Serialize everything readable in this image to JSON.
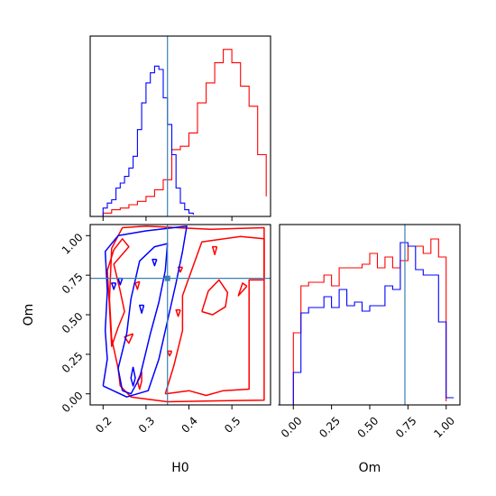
{
  "chart_data": [
    {
      "type": "histogram",
      "panel": "H0-marginal",
      "xlim": [
        0.17,
        0.59
      ],
      "x_ticks": [
        0.2,
        0.3,
        0.4,
        0.5
      ],
      "xlabel": "",
      "ylabel": "",
      "truth_x": 0.35,
      "series": [
        {
          "color": "#ff0000",
          "bin_edges": [
            0.2,
            0.22,
            0.24,
            0.26,
            0.28,
            0.3,
            0.32,
            0.34,
            0.36,
            0.38,
            0.4,
            0.42,
            0.44,
            0.46,
            0.48,
            0.5,
            0.52,
            0.54,
            0.56,
            0.58
          ],
          "heights": [
            0.02,
            0.04,
            0.05,
            0.07,
            0.09,
            0.12,
            0.16,
            0.22,
            0.4,
            0.42,
            0.5,
            0.68,
            0.8,
            0.92,
            1.0,
            0.92,
            0.78,
            0.66,
            0.37,
            0.12
          ]
        },
        {
          "color": "#0000ff",
          "bin_edges": [
            0.2,
            0.21,
            0.22,
            0.23,
            0.24,
            0.25,
            0.26,
            0.27,
            0.28,
            0.29,
            0.3,
            0.31,
            0.32,
            0.33,
            0.34,
            0.35,
            0.36,
            0.37,
            0.38,
            0.39,
            0.4,
            0.41
          ],
          "heights": [
            0.05,
            0.08,
            0.1,
            0.17,
            0.2,
            0.24,
            0.29,
            0.36,
            0.52,
            0.68,
            0.8,
            0.86,
            0.9,
            0.88,
            0.71,
            0.55,
            0.37,
            0.17,
            0.08,
            0.04,
            0.02,
            0.01
          ]
        }
      ]
    },
    {
      "type": "contour",
      "panel": "H0-Om-joint",
      "xlim": [
        0.17,
        0.59
      ],
      "ylim": [
        -0.07,
        1.07
      ],
      "x_ticks": [
        0.2,
        0.3,
        0.4,
        0.5
      ],
      "y_ticks": [
        0.0,
        0.25,
        0.5,
        0.75,
        1.0
      ],
      "x_tick_labels": [
        "0.2",
        "0.3",
        "0.4",
        "0.5"
      ],
      "y_tick_labels": [
        "0.00",
        "0.25",
        "0.50",
        "0.75",
        "1.00"
      ],
      "xlabel": "H0",
      "ylabel": "Om",
      "truth": [
        0.35,
        0.73
      ],
      "series": [
        {
          "color": "#ff0000",
          "contours": [
            [
              [
                0.265,
                -0.02
              ],
              [
                0.24,
                0.05
              ],
              [
                0.235,
                0.16
              ],
              [
                0.22,
                0.35
              ],
              [
                0.215,
                0.6
              ],
              [
                0.22,
                0.92
              ],
              [
                0.245,
                1.05
              ],
              [
                0.3,
                1.06
              ],
              [
                0.45,
                1.04
              ],
              [
                0.575,
                1.05
              ],
              [
                0.575,
                -0.04
              ],
              [
                0.45,
                -0.045
              ],
              [
                0.35,
                -0.05
              ],
              [
                0.265,
                -0.02
              ]
            ],
            [
              [
                0.345,
                0.0
              ],
              [
                0.365,
                0.18
              ],
              [
                0.385,
                0.4
              ],
              [
                0.385,
                0.62
              ],
              [
                0.43,
                0.96
              ],
              [
                0.52,
                0.995
              ],
              [
                0.575,
                0.98
              ],
              [
                0.575,
                0.72
              ],
              [
                0.54,
                0.72
              ],
              [
                0.54,
                0.03
              ],
              [
                0.48,
                0.02
              ],
              [
                0.44,
                -0.01
              ],
              [
                0.4,
                0.02
              ],
              [
                0.345,
                0.0
              ]
            ],
            [
              [
                0.43,
                0.52
              ],
              [
                0.445,
                0.65
              ],
              [
                0.47,
                0.72
              ],
              [
                0.49,
                0.64
              ],
              [
                0.485,
                0.55
              ],
              [
                0.455,
                0.5
              ],
              [
                0.43,
                0.52
              ]
            ],
            [
              [
                0.235,
                0.42
              ],
              [
                0.25,
                0.52
              ],
              [
                0.24,
                0.65
              ],
              [
                0.225,
                0.82
              ],
              [
                0.26,
                0.93
              ],
              [
                0.245,
                0.98
              ],
              [
                0.225,
                0.91
              ],
              [
                0.21,
                0.78
              ],
              [
                0.215,
                0.55
              ],
              [
                0.22,
                0.3
              ],
              [
                0.235,
                0.42
              ]
            ],
            [
              [
                0.29,
                0.14
              ],
              [
                0.29,
                0.08
              ],
              [
                0.285,
                0.03
              ],
              [
                0.28,
                0.08
              ],
              [
                0.29,
                0.14
              ]
            ],
            [
              [
                0.27,
                0.38
              ],
              [
                0.26,
                0.32
              ],
              [
                0.25,
                0.36
              ],
              [
                0.27,
                0.38
              ]
            ],
            [
              [
                0.285,
                0.71
              ],
              [
                0.28,
                0.66
              ],
              [
                0.275,
                0.7
              ],
              [
                0.285,
                0.71
              ]
            ],
            [
              [
                0.535,
                0.68
              ],
              [
                0.515,
                0.62
              ],
              [
                0.525,
                0.7
              ],
              [
                0.535,
                0.68
              ]
            ],
            [
              [
                0.385,
                0.8
              ],
              [
                0.38,
                0.77
              ],
              [
                0.375,
                0.8
              ],
              [
                0.385,
                0.8
              ]
            ],
            [
              [
                0.38,
                0.53
              ],
              [
                0.375,
                0.49
              ],
              [
                0.37,
                0.53
              ],
              [
                0.38,
                0.53
              ]
            ],
            [
              [
                0.36,
                0.27
              ],
              [
                0.355,
                0.24
              ],
              [
                0.35,
                0.27
              ],
              [
                0.36,
                0.27
              ]
            ],
            [
              [
                0.465,
                0.93
              ],
              [
                0.46,
                0.88
              ],
              [
                0.455,
                0.93
              ],
              [
                0.465,
                0.93
              ]
            ]
          ]
        },
        {
          "color": "#0000ff",
          "contours": [
            [
              [
                0.2,
                0.05
              ],
              [
                0.21,
                0.22
              ],
              [
                0.205,
                0.4
              ],
              [
                0.21,
                0.65
              ],
              [
                0.205,
                0.9
              ],
              [
                0.235,
                1.0
              ],
              [
                0.3,
                1.03
              ],
              [
                0.395,
                1.06
              ],
              [
                0.385,
                0.9
              ],
              [
                0.37,
                0.7
              ],
              [
                0.35,
                0.46
              ],
              [
                0.33,
                0.22
              ],
              [
                0.305,
                0.02
              ],
              [
                0.255,
                -0.02
              ],
              [
                0.2,
                0.05
              ]
            ],
            [
              [
                0.245,
                0.02
              ],
              [
                0.235,
                0.16
              ],
              [
                0.255,
                0.38
              ],
              [
                0.265,
                0.6
              ],
              [
                0.285,
                0.84
              ],
              [
                0.32,
                0.93
              ],
              [
                0.35,
                0.95
              ],
              [
                0.345,
                0.78
              ],
              [
                0.33,
                0.58
              ],
              [
                0.31,
                0.38
              ],
              [
                0.285,
                0.1
              ],
              [
                0.265,
                0.0
              ],
              [
                0.245,
                0.02
              ]
            ],
            [
              [
                0.27,
                0.17
              ],
              [
                0.275,
                0.1
              ],
              [
                0.27,
                0.05
              ],
              [
                0.265,
                0.1
              ],
              [
                0.27,
                0.17
              ]
            ],
            [
              [
                0.245,
                0.73
              ],
              [
                0.24,
                0.69
              ],
              [
                0.235,
                0.73
              ],
              [
                0.245,
                0.73
              ]
            ],
            [
              [
                0.295,
                0.56
              ],
              [
                0.29,
                0.51
              ],
              [
                0.285,
                0.56
              ],
              [
                0.295,
                0.56
              ]
            ],
            [
              [
                0.325,
                0.85
              ],
              [
                0.32,
                0.81
              ],
              [
                0.315,
                0.85
              ],
              [
                0.325,
                0.85
              ]
            ],
            [
              [
                0.23,
                0.7
              ],
              [
                0.225,
                0.66
              ],
              [
                0.22,
                0.7
              ],
              [
                0.23,
                0.7
              ]
            ]
          ]
        }
      ]
    },
    {
      "type": "histogram",
      "panel": "Om-marginal",
      "xlim": [
        -0.09,
        1.09
      ],
      "x_ticks": [
        0.0,
        0.25,
        0.5,
        0.75,
        1.0
      ],
      "x_tick_labels": [
        "0.00",
        "0.25",
        "0.50",
        "0.75",
        "1.00"
      ],
      "xlabel": "Om",
      "ylabel": "",
      "truth_x": 0.73,
      "series": [
        {
          "color": "#ff0000",
          "bin_edges": [
            0.0,
            0.05,
            0.1,
            0.15,
            0.2,
            0.25,
            0.3,
            0.35,
            0.4,
            0.45,
            0.5,
            0.55,
            0.6,
            0.65,
            0.7,
            0.75,
            0.8,
            0.85,
            0.9,
            0.95,
            1.0
          ],
          "heights": [
            0.4,
            0.66,
            0.68,
            0.68,
            0.72,
            0.66,
            0.76,
            0.76,
            0.76,
            0.78,
            0.84,
            0.76,
            0.82,
            0.76,
            0.8,
            0.88,
            0.88,
            0.84,
            0.92,
            0.82,
            0.02
          ]
        },
        {
          "color": "#0000ff",
          "bin_edges": [
            -0.1,
            -0.05,
            0.0,
            0.05,
            0.1,
            0.15,
            0.2,
            0.25,
            0.3,
            0.35,
            0.4,
            0.45,
            0.5,
            0.55,
            0.6,
            0.65,
            0.7,
            0.75,
            0.8,
            0.85,
            0.9,
            0.95,
            1.0,
            1.05
          ],
          "heights": [
            0.0,
            0.0,
            0.18,
            0.51,
            0.54,
            0.54,
            0.6,
            0.54,
            0.64,
            0.55,
            0.57,
            0.52,
            0.55,
            0.55,
            0.66,
            0.64,
            0.9,
            0.88,
            0.75,
            0.72,
            0.72,
            0.46,
            0.04,
            0.04
          ]
        }
      ]
    }
  ]
}
